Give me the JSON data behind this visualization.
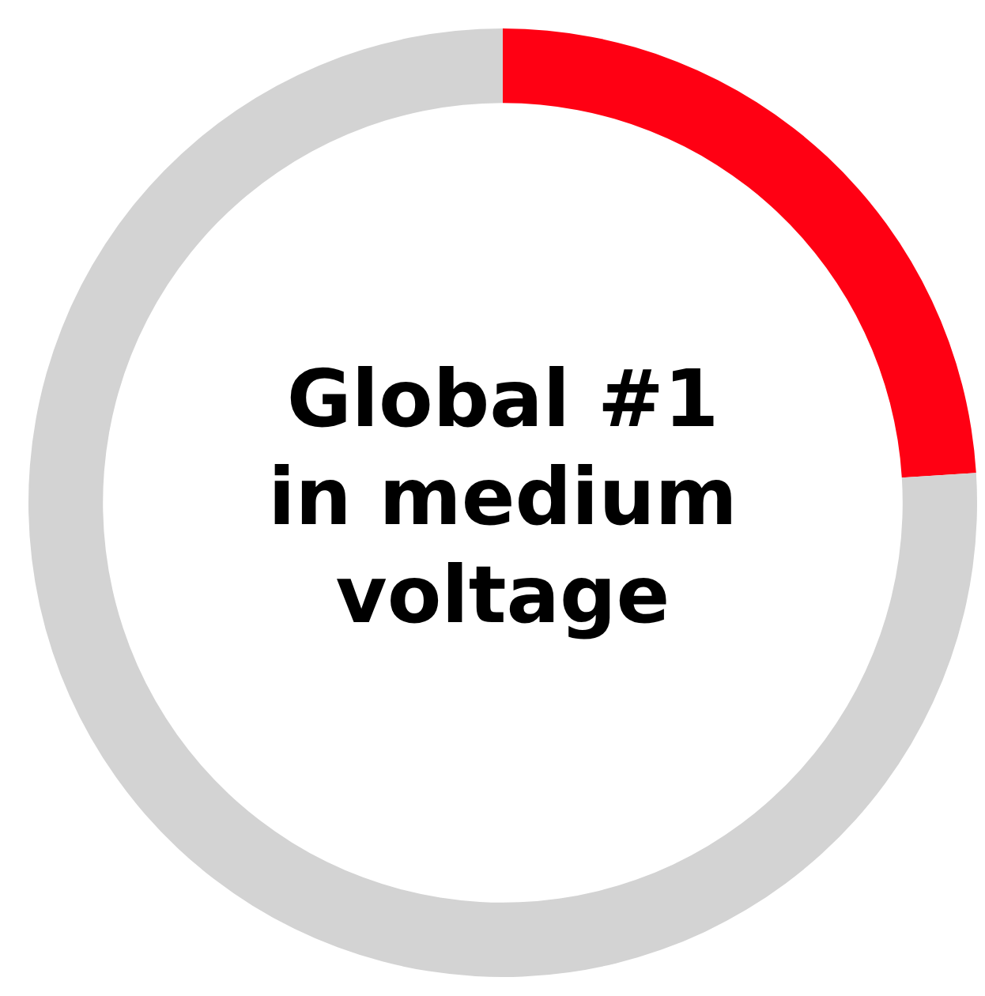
{
  "chart_data": {
    "type": "donut",
    "title": "Global #1 in medium voltage",
    "categories": [
      null,
      null
    ],
    "values": [
      24,
      76
    ],
    "colors": [
      "#ff0013",
      "#d3d3d3"
    ]
  }
}
